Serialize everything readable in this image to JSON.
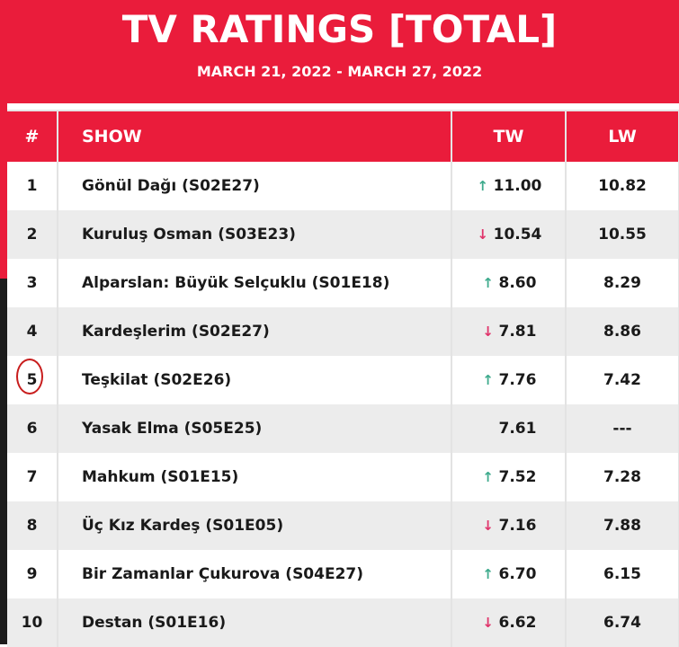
{
  "header": {
    "title": "TV RATINGS [TOTAL]",
    "subtitle": "MARCH 21, 2022 - MARCH 27, 2022"
  },
  "columns": {
    "rank": "#",
    "show": "SHOW",
    "tw": "TW",
    "lw": "LW"
  },
  "rows": [
    {
      "rank": "1",
      "show": "Gönül Dağı (S02E27)",
      "trend": "up",
      "arrow": "↑",
      "tw": "11.00",
      "lw": "10.82"
    },
    {
      "rank": "2",
      "show": "Kuruluş Osman (S03E23)",
      "trend": "down",
      "arrow": "↓",
      "tw": "10.54",
      "lw": "10.55"
    },
    {
      "rank": "3",
      "show": "Alparslan: Büyük Selçuklu (S01E18)",
      "trend": "up",
      "arrow": "↑",
      "tw": "8.60",
      "lw": "8.29"
    },
    {
      "rank": "4",
      "show": "Kardeşlerim (S02E27)",
      "trend": "down",
      "arrow": "↓",
      "tw": "7.81",
      "lw": "8.86"
    },
    {
      "rank": "5",
      "show": "Teşkilat (S02E26)",
      "trend": "up",
      "arrow": "↑",
      "tw": "7.76",
      "lw": "7.42"
    },
    {
      "rank": "6",
      "show": "Yasak Elma (S05E25)",
      "trend": "none",
      "arrow": "",
      "tw": "7.61",
      "lw": "---"
    },
    {
      "rank": "7",
      "show": "Mahkum (S01E15)",
      "trend": "up",
      "arrow": "↑",
      "tw": "7.52",
      "lw": "7.28"
    },
    {
      "rank": "8",
      "show": "Üç Kız Kardeş (S01E05)",
      "trend": "down",
      "arrow": "↓",
      "tw": "7.16",
      "lw": "7.88"
    },
    {
      "rank": "9",
      "show": "Bir Zamanlar Çukurova (S04E27)",
      "trend": "up",
      "arrow": "↑",
      "tw": "6.70",
      "lw": "6.15"
    },
    {
      "rank": "10",
      "show": "Destan (S01E16)",
      "trend": "down",
      "arrow": "↓",
      "tw": "6.62",
      "lw": "6.74"
    }
  ],
  "colors": {
    "brand": "#ea1c3b",
    "up": "#3daa8c",
    "down": "#e0336a",
    "annotation": "#c81d1d"
  },
  "icons": {
    "up": "arrow-up-icon",
    "down": "arrow-down-icon",
    "annotation": "hand-drawn-circle"
  }
}
